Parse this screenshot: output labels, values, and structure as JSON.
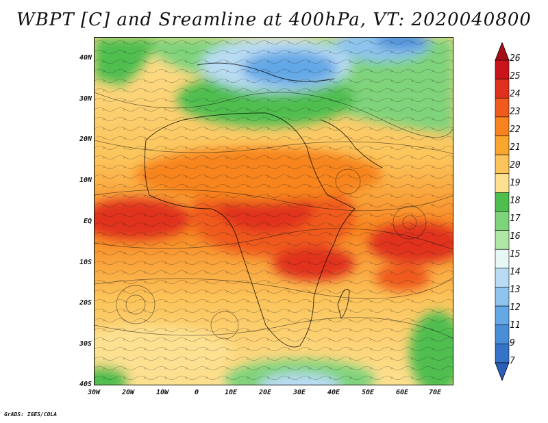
{
  "title": "WBPT [C] and Sreamline at 400hPa, VT: 2020040800",
  "credit": "GrADS: IGES/COLA",
  "map": {
    "projection": "lat-lon",
    "lat_range": [
      -40,
      45
    ],
    "lon_range": [
      -30,
      75
    ],
    "field": "wet-bulb potential temperature with streamlines",
    "lat_labels": [
      "40N",
      "30N",
      "20N",
      "10N",
      "EQ",
      "10S",
      "20S",
      "30S",
      "40S"
    ],
    "lon_labels": [
      "30W",
      "20W",
      "10W",
      "0",
      "10E",
      "20E",
      "30E",
      "40E",
      "50E",
      "60E",
      "70E"
    ]
  },
  "colorbar": {
    "labels": [
      "26",
      "25",
      "24",
      "23",
      "22",
      "21",
      "20",
      "19",
      "18",
      "17",
      "16",
      "15",
      "14",
      "13",
      "12",
      "11",
      "9",
      "7"
    ],
    "colors": [
      "#a50f15",
      "#c8141a",
      "#e0301e",
      "#f05a1e",
      "#f7841f",
      "#f9a52e",
      "#fcc45a",
      "#fde191",
      "#4fbe4f",
      "#7fd37a",
      "#b0e6a6",
      "#e6f7f6",
      "#b9dcf3",
      "#8ec4ee",
      "#64a8e6",
      "#4a8ed8",
      "#3573c9",
      "#2a5fb8"
    ]
  }
}
